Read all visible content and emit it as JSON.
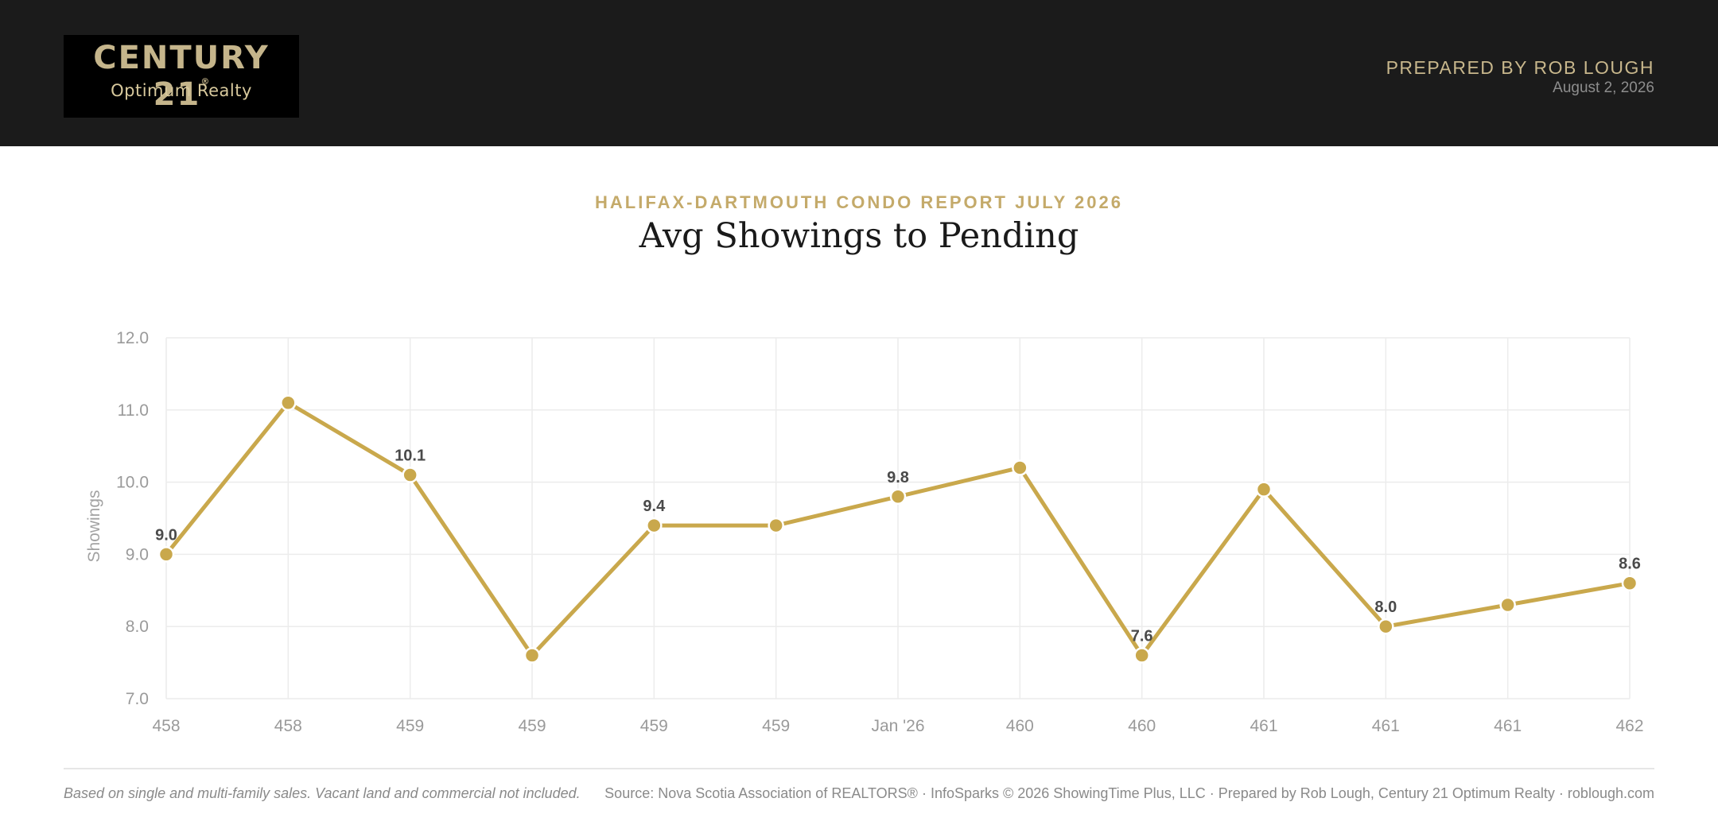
{
  "header": {
    "logo": {
      "brand": "CENTURY 21",
      "registered": "®",
      "office": "Optimum Realty"
    },
    "prepared_by": "PREPARED BY ROB LOUGH",
    "date": "August 2, 2026"
  },
  "report": {
    "subtitle": "HALIFAX-DARTMOUTH CONDO REPORT JULY 2026",
    "title": "Avg Showings to Pending"
  },
  "colors": {
    "line": "#c9a84c",
    "grid": "#ececec",
    "header_bg": "#1b1b1b",
    "accent": "#c4aa6a"
  },
  "chart_data": {
    "type": "line",
    "title": "Avg Showings to Pending",
    "xlabel": "",
    "ylabel": "Showings",
    "ylim": [
      7.0,
      12.0
    ],
    "yticks": [
      "7.0",
      "8.0",
      "9.0",
      "10.0",
      "11.0",
      "12.0"
    ],
    "categories": [
      "458",
      "458",
      "459",
      "459",
      "459",
      "459",
      "Jan '26",
      "460",
      "460",
      "461",
      "461",
      "461",
      "462"
    ],
    "values": [
      9.0,
      11.1,
      10.1,
      7.6,
      9.4,
      9.4,
      9.8,
      10.2,
      7.6,
      9.9,
      8.0,
      8.3,
      8.6
    ],
    "data_labels": [
      "9.0",
      "",
      "10.1",
      "",
      "9.4",
      "",
      "9.8",
      "",
      "7.6",
      "",
      "8.0",
      "",
      "8.6"
    ],
    "grid": true,
    "legend": "none"
  },
  "footer": {
    "note": "Based on single and multi-family sales. Vacant land and commercial not included.",
    "source": "Source: Nova Scotia Association of REALTORS® · InfoSparks © 2026 ShowingTime Plus, LLC · Prepared by Rob Lough, Century 21 Optimum Realty · roblough.com"
  }
}
